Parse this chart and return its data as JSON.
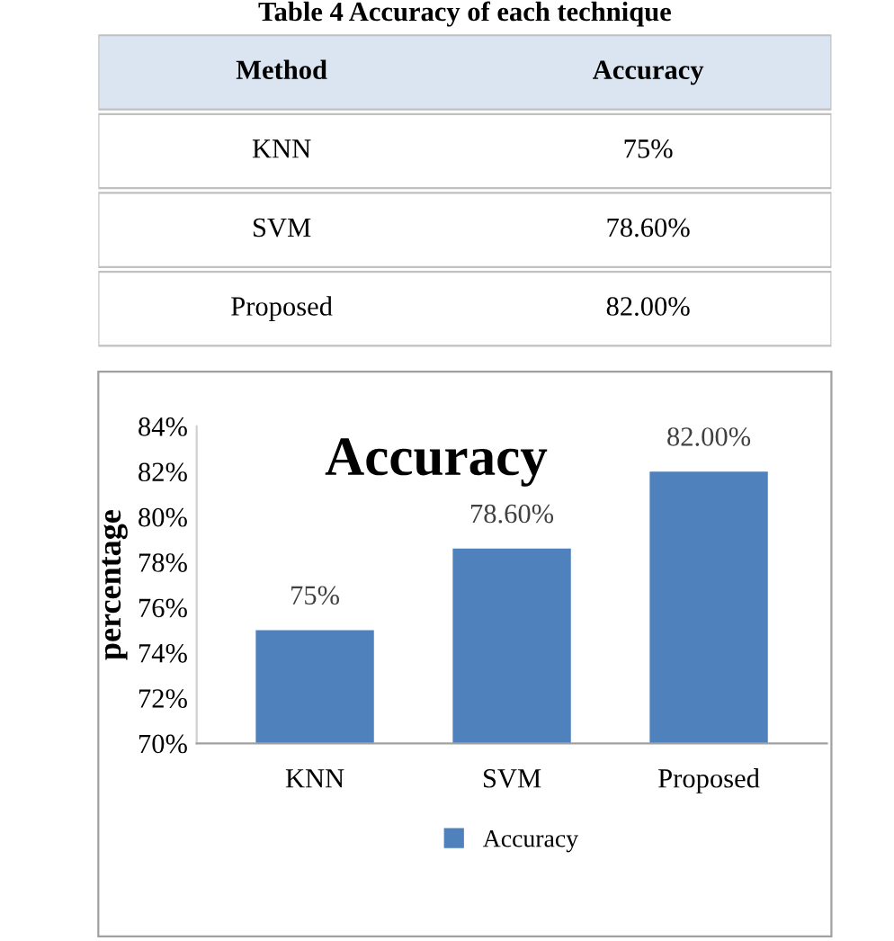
{
  "chart_data": [
    {
      "type": "other",
      "title": "Table 4 Accuracy of each technique",
      "annotations": [
        "Method",
        "Accuracy",
        "KNN",
        "75%",
        "SVM",
        "78.60%",
        "Proposed",
        "82.00%"
      ]
    },
    {
      "type": "bar",
      "title": "Accuracy",
      "ylabel": "percentage",
      "categories": [
        "KNN",
        "SVM",
        "Proposed"
      ],
      "series": [
        {
          "name": "Accuracy",
          "color": "#4f81bd",
          "values": [
            75,
            78.6,
            82
          ],
          "value_labels": [
            "75%",
            "78.60%",
            "82.00%"
          ]
        }
      ],
      "ylim": [
        70,
        84
      ],
      "yticks": [
        {
          "value": 70,
          "label": "70%"
        },
        {
          "value": 72,
          "label": "72%"
        },
        {
          "value": 74,
          "label": "74%"
        },
        {
          "value": 76,
          "label": "76%"
        },
        {
          "value": 78,
          "label": "78%"
        },
        {
          "value": 80,
          "label": "80%"
        },
        {
          "value": 82,
          "label": "82%"
        },
        {
          "value": 84,
          "label": "84%"
        }
      ],
      "grid": false,
      "legend": "bottom"
    }
  ]
}
